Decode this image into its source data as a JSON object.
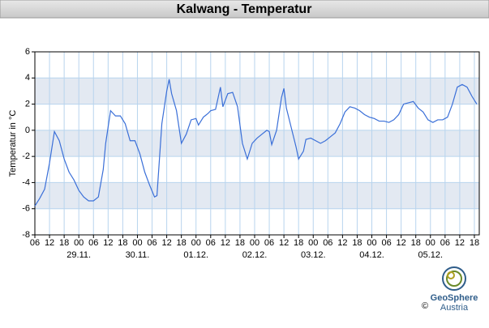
{
  "chart_data": {
    "type": "line",
    "title": "Kalwang - Temperatur",
    "y_label": "Temperatur in °C",
    "xlim": [
      0,
      182
    ],
    "ylim": [
      -8,
      6
    ],
    "yticks": [
      -8,
      -6,
      -4,
      -2,
      0,
      2,
      4,
      6
    ],
    "grid": true,
    "xticks": [
      {
        "value": 0,
        "label": "06"
      },
      {
        "value": 6,
        "label": "12"
      },
      {
        "value": 12,
        "label": "18"
      },
      {
        "value": 18,
        "label": "00"
      },
      {
        "value": 24,
        "label": "06"
      },
      {
        "value": 30,
        "label": "12"
      },
      {
        "value": 36,
        "label": "18"
      },
      {
        "value": 42,
        "label": "00"
      },
      {
        "value": 48,
        "label": "06"
      },
      {
        "value": 54,
        "label": "12"
      },
      {
        "value": 60,
        "label": "18"
      },
      {
        "value": 66,
        "label": "00"
      },
      {
        "value": 72,
        "label": "06"
      },
      {
        "value": 78,
        "label": "12"
      },
      {
        "value": 84,
        "label": "18"
      },
      {
        "value": 90,
        "label": "00"
      },
      {
        "value": 96,
        "label": "06"
      },
      {
        "value": 102,
        "label": "12"
      },
      {
        "value": 108,
        "label": "18"
      },
      {
        "value": 114,
        "label": "00"
      },
      {
        "value": 120,
        "label": "06"
      },
      {
        "value": 126,
        "label": "12"
      },
      {
        "value": 132,
        "label": "18"
      },
      {
        "value": 138,
        "label": "00"
      },
      {
        "value": 144,
        "label": "06"
      },
      {
        "value": 150,
        "label": "12"
      },
      {
        "value": 156,
        "label": "18"
      },
      {
        "value": 162,
        "label": "00"
      },
      {
        "value": 168,
        "label": "06"
      },
      {
        "value": 174,
        "label": "12"
      },
      {
        "value": 180,
        "label": "18"
      }
    ],
    "x_dates": [
      {
        "value": 18,
        "label": "29.11."
      },
      {
        "value": 42,
        "label": "30.11."
      },
      {
        "value": 66,
        "label": "01.12."
      },
      {
        "value": 90,
        "label": "02.12."
      },
      {
        "value": 114,
        "label": "03.12."
      },
      {
        "value": 138,
        "label": "04.12."
      },
      {
        "value": 162,
        "label": "05.12."
      }
    ],
    "series": [
      {
        "color": "#3a6fd8",
        "x": [
          0,
          2,
          4,
          6,
          8,
          10,
          12,
          14,
          16,
          18,
          20,
          22,
          24,
          26,
          28,
          29,
          31,
          33,
          35,
          37,
          39,
          41,
          43,
          45,
          47,
          49,
          50,
          52,
          54,
          55,
          56,
          58,
          60,
          62,
          64,
          66,
          67,
          69,
          71,
          72,
          74,
          76,
          77,
          79,
          81,
          83,
          85,
          87,
          89,
          91,
          93,
          95,
          96,
          97,
          99,
          101,
          102,
          103,
          105,
          107,
          108,
          110,
          111,
          113,
          115,
          117,
          119,
          121,
          123,
          125,
          127,
          129,
          131,
          133,
          135,
          137,
          139,
          141,
          143,
          145,
          147,
          149,
          151,
          153,
          155,
          157,
          159,
          161,
          163,
          165,
          167,
          169,
          171,
          173,
          175,
          177,
          179,
          181
        ],
        "values": [
          -5.8,
          -5.2,
          -4.5,
          -2.5,
          -0.1,
          -0.8,
          -2.2,
          -3.2,
          -3.8,
          -4.6,
          -5.1,
          -5.4,
          -5.4,
          -5.1,
          -3.0,
          -1.0,
          1.5,
          1.1,
          1.1,
          0.5,
          -0.8,
          -0.8,
          -1.8,
          -3.2,
          -4.2,
          -5.1,
          -5.0,
          0.5,
          3.0,
          3.9,
          2.8,
          1.5,
          -1.0,
          -0.3,
          0.8,
          0.9,
          0.4,
          1.0,
          1.3,
          1.5,
          1.6,
          3.3,
          1.8,
          2.8,
          2.9,
          1.8,
          -1.0,
          -2.2,
          -1.0,
          -0.6,
          -0.3,
          0.0,
          -0.1,
          -1.1,
          0.0,
          2.5,
          3.2,
          1.7,
          0.2,
          -1.3,
          -2.2,
          -1.6,
          -0.7,
          -0.6,
          -0.8,
          -1.0,
          -0.8,
          -0.5,
          -0.2,
          0.5,
          1.4,
          1.8,
          1.7,
          1.5,
          1.2,
          1.0,
          0.9,
          0.7,
          0.7,
          0.6,
          0.8,
          1.2,
          2.0,
          2.1,
          2.2,
          1.7,
          1.4,
          0.8,
          0.6,
          0.8,
          0.8,
          1.0,
          2.0,
          3.3,
          3.5,
          3.3,
          2.6,
          2.0
        ]
      }
    ]
  },
  "footer": {
    "brand": "GeoSphere",
    "sub": "Austria",
    "copyright": "©"
  }
}
